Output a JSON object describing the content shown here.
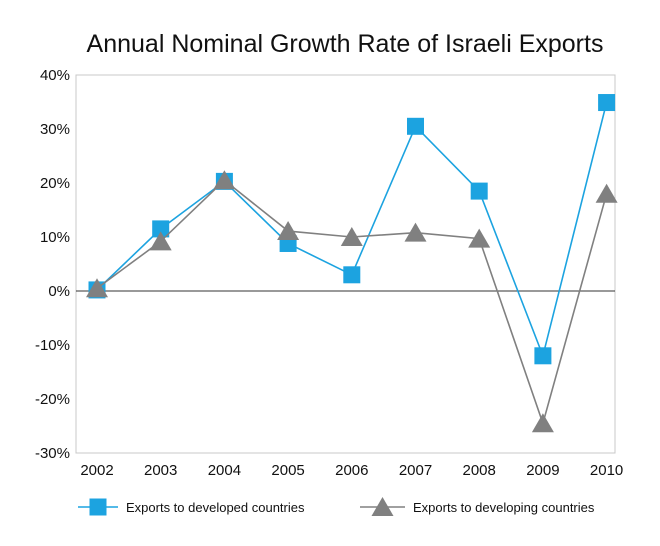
{
  "chart_data": {
    "type": "line",
    "title": "Annual Nominal Growth Rate of Israeli Exports",
    "xlabel": "",
    "ylabel": "",
    "categories": [
      "2002",
      "2003",
      "2004",
      "2005",
      "2006",
      "2007",
      "2008",
      "2009",
      "2010"
    ],
    "ylim": [
      -30,
      40
    ],
    "y_ticks": [
      40,
      30,
      20,
      10,
      0,
      -10,
      -20,
      -30
    ],
    "y_tick_labels": [
      "40%",
      "30%",
      "20%",
      "10%",
      "0%",
      "-10%",
      "-20%",
      "-30%"
    ],
    "grid": false,
    "legend_position": "bottom",
    "series": [
      {
        "name": "Exports to developed countries",
        "marker": "square",
        "color": "#1ca3e0",
        "values": [
          0.2,
          11.5,
          20.3,
          8.8,
          3.0,
          30.5,
          18.5,
          -12.0,
          34.9
        ]
      },
      {
        "name": "Exports to developing countries",
        "marker": "triangle",
        "color": "#808080",
        "values": [
          0.5,
          9.2,
          20.5,
          11.1,
          10.0,
          10.8,
          9.7,
          -24.5,
          18.0
        ]
      }
    ]
  }
}
